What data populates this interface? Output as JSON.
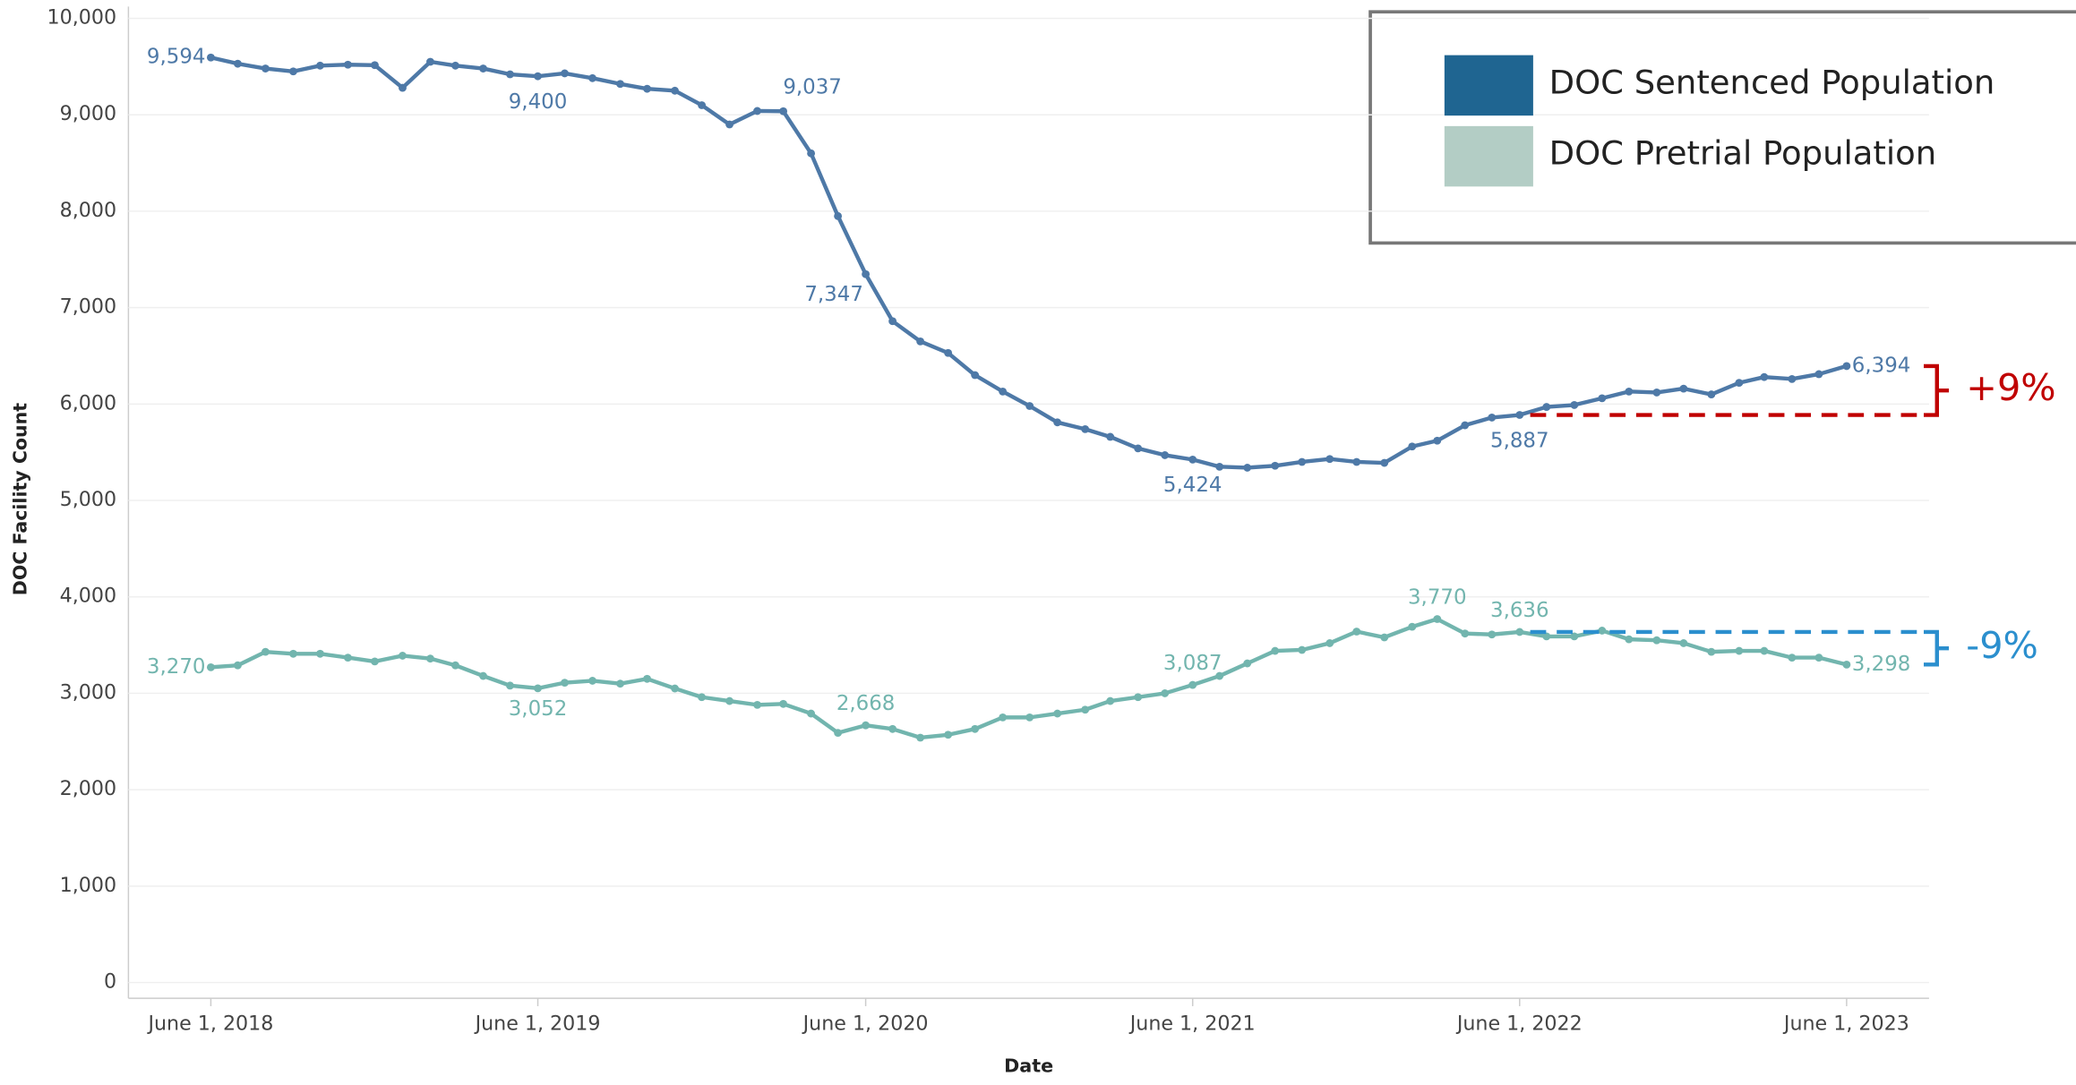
{
  "chart_data": {
    "type": "line",
    "xlabel": "Date",
    "ylabel": "DOC Facility Count",
    "x": [
      "2018-06-01",
      "2018-07-01",
      "2018-08-01",
      "2018-09-01",
      "2018-10-01",
      "2018-11-01",
      "2018-12-01",
      "2019-01-01",
      "2019-02-01",
      "2019-03-01",
      "2019-04-01",
      "2019-05-01",
      "2019-06-01",
      "2019-07-01",
      "2019-08-01",
      "2019-09-01",
      "2019-10-01",
      "2019-11-01",
      "2019-12-01",
      "2020-01-01",
      "2020-02-01",
      "2020-03-01",
      "2020-04-01",
      "2020-05-01",
      "2020-06-01",
      "2020-07-01",
      "2020-08-01",
      "2020-09-01",
      "2020-10-01",
      "2020-11-01",
      "2020-12-01",
      "2021-01-01",
      "2021-02-01",
      "2021-03-01",
      "2021-04-01",
      "2021-05-01",
      "2021-06-01",
      "2021-07-01",
      "2021-08-01",
      "2021-09-01",
      "2021-10-01",
      "2021-11-01",
      "2021-12-01",
      "2022-01-01",
      "2022-02-01",
      "2022-03-01",
      "2022-04-01",
      "2022-05-01",
      "2022-06-01",
      "2022-07-01",
      "2022-08-01",
      "2022-09-01",
      "2022-10-01",
      "2022-11-01",
      "2022-12-01",
      "2023-01-01",
      "2023-02-01",
      "2023-03-01",
      "2023-04-01",
      "2023-05-01",
      "2023-06-01"
    ],
    "xlim": [
      "2018-03-01",
      "2023-09-01"
    ],
    "xticks": [
      {
        "value": "2018-06-01",
        "label": "June 1, 2018"
      },
      {
        "value": "2019-06-01",
        "label": "June 1, 2019"
      },
      {
        "value": "2020-06-01",
        "label": "June 1, 2020"
      },
      {
        "value": "2021-06-01",
        "label": "June 1, 2021"
      },
      {
        "value": "2022-06-01",
        "label": "June 1, 2022"
      },
      {
        "value": "2023-06-01",
        "label": "June 1, 2023"
      }
    ],
    "ylim": [
      0,
      10000
    ],
    "yticks": [
      0,
      {
        "value": 1000,
        "label": "1,000"
      },
      {
        "value": 2000,
        "label": "2,000"
      },
      {
        "value": 3000,
        "label": "3,000"
      },
      {
        "value": 4000,
        "label": "4,000"
      },
      {
        "value": 5000,
        "label": "5,000"
      },
      {
        "value": 6000,
        "label": "6,000"
      },
      {
        "value": 7000,
        "label": "7,000"
      },
      {
        "value": 8000,
        "label": "8,000"
      },
      {
        "value": 9000,
        "label": "9,000"
      },
      {
        "value": 10000,
        "label": "10,000"
      }
    ],
    "grid": true,
    "legend": "upper right",
    "series": [
      {
        "name": "DOC Sentenced Population",
        "color": "#4e79a7",
        "legend_color": "#1f6591",
        "values": [
          9594,
          9530,
          9480,
          9450,
          9510,
          9520,
          9515,
          9280,
          9550,
          9510,
          9480,
          9420,
          9400,
          9430,
          9380,
          9320,
          9270,
          9250,
          9100,
          8900,
          9040,
          9037,
          8600,
          7950,
          7347,
          6860,
          6650,
          6530,
          6300,
          6130,
          5980,
          5810,
          5740,
          5660,
          5540,
          5470,
          5424,
          5350,
          5340,
          5360,
          5400,
          5430,
          5400,
          5390,
          5560,
          5620,
          5780,
          5860,
          5887,
          5970,
          5990,
          6060,
          6130,
          6120,
          6160,
          6100,
          6220,
          6280,
          6260,
          6310,
          6394
        ],
        "value_labels": [
          "9,594",
          null,
          null,
          null,
          null,
          null,
          null,
          null,
          null,
          null,
          null,
          null,
          "9,400",
          null,
          null,
          null,
          null,
          null,
          null,
          null,
          null,
          "9,037",
          null,
          null,
          "7,347",
          null,
          null,
          null,
          null,
          null,
          null,
          null,
          null,
          null,
          null,
          null,
          "5,424",
          null,
          null,
          null,
          null,
          null,
          null,
          null,
          null,
          null,
          null,
          null,
          "5,887",
          null,
          null,
          null,
          null,
          null,
          null,
          null,
          null,
          null,
          null,
          null,
          "6,394"
        ]
      },
      {
        "name": "DOC Pretrial Population",
        "color": "#72b5ae",
        "legend_color": "#b3cdc5",
        "values": [
          3270,
          3290,
          3430,
          3410,
          3410,
          3370,
          3330,
          3390,
          3360,
          3290,
          3180,
          3080,
          3052,
          3110,
          3130,
          3100,
          3150,
          3050,
          2960,
          2920,
          2880,
          2890,
          2790,
          2590,
          2668,
          2630,
          2540,
          2570,
          2630,
          2750,
          2750,
          2790,
          2830,
          2920,
          2960,
          3000,
          3087,
          3180,
          3310,
          3440,
          3450,
          3520,
          3640,
          3580,
          3690,
          3770,
          3620,
          3610,
          3636,
          3590,
          3590,
          3650,
          3560,
          3550,
          3520,
          3430,
          3440,
          3440,
          3370,
          3370,
          3298
        ],
        "value_labels": [
          "3,270",
          null,
          null,
          null,
          null,
          null,
          null,
          null,
          null,
          null,
          null,
          null,
          "3,052",
          null,
          null,
          null,
          null,
          null,
          null,
          null,
          null,
          null,
          null,
          null,
          "2,668",
          null,
          null,
          null,
          null,
          null,
          null,
          null,
          null,
          null,
          null,
          null,
          "3,087",
          null,
          null,
          null,
          null,
          null,
          null,
          null,
          null,
          "3,770",
          null,
          null,
          "3,636",
          null,
          null,
          null,
          null,
          null,
          null,
          null,
          null,
          null,
          null,
          null,
          "3,298"
        ]
      }
    ],
    "annotations": [
      {
        "text": "+9%",
        "color": "#c00000"
      },
      {
        "text": "-9%",
        "color": "#2b8fce"
      }
    ]
  }
}
